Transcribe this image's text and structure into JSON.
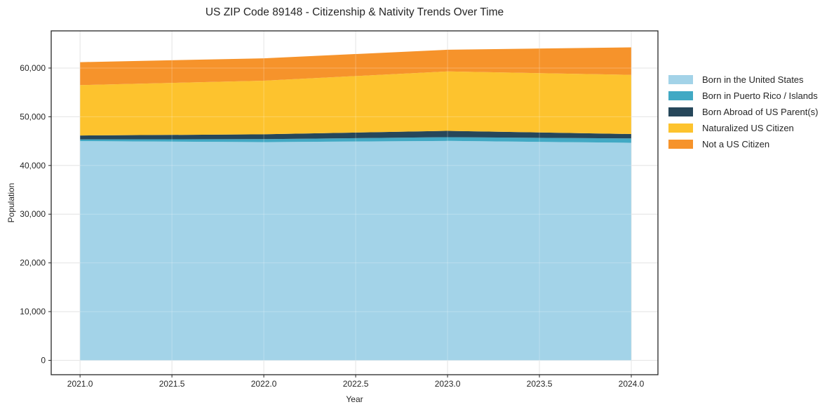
{
  "chart_data": {
    "type": "area",
    "stacked": true,
    "title": "US ZIP Code 89148 - Citizenship & Nativity Trends Over Time",
    "xlabel": "Year",
    "ylabel": "Population",
    "x": [
      2021,
      2022,
      2023,
      2024
    ],
    "series": [
      {
        "name": "Born in the United States",
        "color": "#a3d3e8",
        "values": [
          45000,
          44800,
          45050,
          44650
        ]
      },
      {
        "name": "Born in Puerto Rico / Islands",
        "color": "#41a9c4",
        "values": [
          350,
          600,
          750,
          900
        ]
      },
      {
        "name": "Born Abroad of US Parent(s)",
        "color": "#26475a",
        "values": [
          800,
          1000,
          1300,
          900
        ]
      },
      {
        "name": "Naturalized US Citizen",
        "color": "#fdc32e",
        "values": [
          10350,
          11000,
          12200,
          12150
        ]
      },
      {
        "name": "Not a US Citizen",
        "color": "#f6932b",
        "values": [
          4700,
          4600,
          4450,
          5650
        ]
      }
    ],
    "stacked_totals": [
      61200,
      62000,
      63750,
      64250
    ],
    "xlim": [
      2020.843,
      2024.145
    ],
    "ylim": [
      -2953,
      67630
    ],
    "x_ticks": [
      2021.0,
      2021.5,
      2022.0,
      2022.5,
      2023.0,
      2023.5,
      2024.0
    ],
    "x_tick_labels": [
      "2021.0",
      "2021.5",
      "2022.0",
      "2022.5",
      "2023.0",
      "2023.5",
      "2024.0"
    ],
    "y_ticks": [
      0,
      10000,
      20000,
      30000,
      40000,
      50000,
      60000
    ],
    "y_tick_labels": [
      "0",
      "10,000",
      "20,000",
      "30,000",
      "40,000",
      "50,000",
      "60,000"
    ],
    "grid": true,
    "legend_position": "right-outside"
  },
  "colors": {
    "background": "#ffffff",
    "spine": "#262626",
    "grid": "#dcdcdc",
    "grid_over_area": "rgba(255,255,255,0.25)",
    "text": "#262626"
  }
}
